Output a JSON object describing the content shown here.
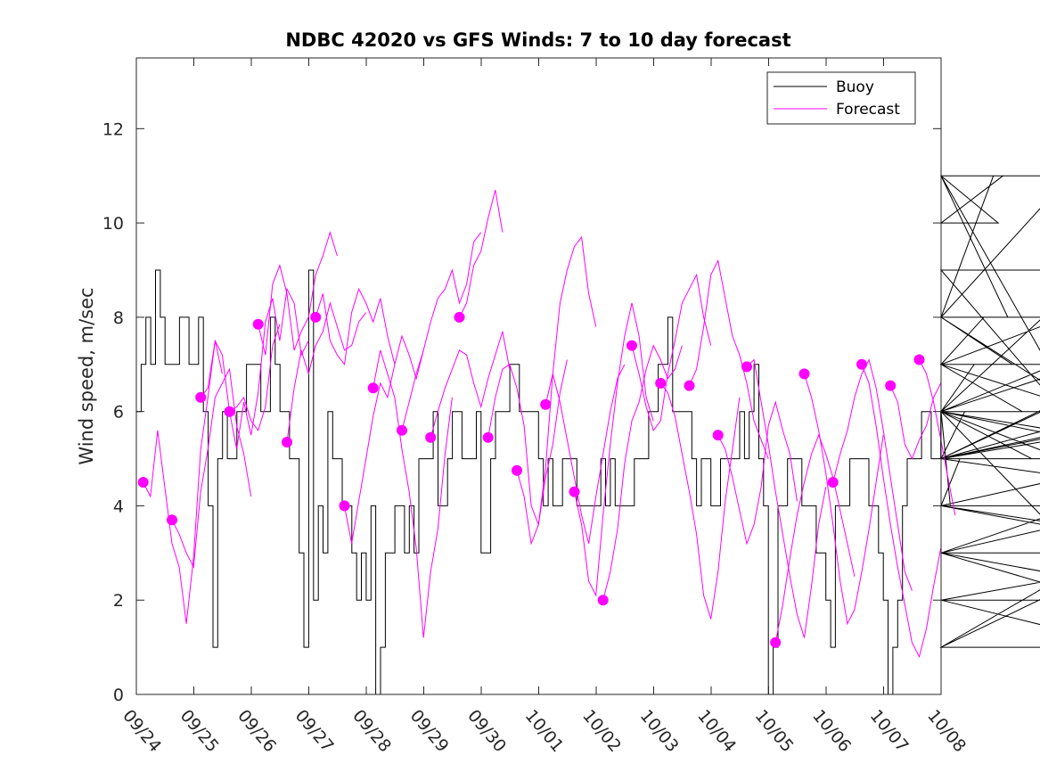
{
  "chart_data": {
    "type": "line",
    "title": "NDBC 42020 vs GFS Winds: 7 to 10 day forecast",
    "xlabel": "",
    "ylabel": "Wind speed, m/sec",
    "xlim": [
      0,
      14
    ],
    "ylim": [
      0,
      13.5
    ],
    "grid": false,
    "legend_position": "top-right",
    "x_ticks": [
      0,
      1,
      2,
      3,
      4,
      5,
      6,
      7,
      8,
      9,
      10,
      11,
      12,
      13,
      14
    ],
    "x_tick_labels": [
      "09/24",
      "09/25",
      "09/26",
      "09/27",
      "09/28",
      "09/29",
      "09/30",
      "10/01",
      "10/02",
      "10/03",
      "10/04",
      "10/05",
      "10/06",
      "10/07",
      "10/08"
    ],
    "y_ticks": [
      0,
      2,
      4,
      6,
      8,
      10,
      12
    ],
    "y_tick_labels": [
      "0",
      "2",
      "4",
      "6",
      "8",
      "10",
      "12"
    ],
    "colors": {
      "buoy": "#000000",
      "forecast": "#ff00ff"
    },
    "legend": [
      {
        "name": "Buoy",
        "color": "#000000"
      },
      {
        "name": "Forecast",
        "color": "#ff00ff"
      }
    ],
    "buoy": {
      "name": "Buoy",
      "step_days": 0.0833,
      "values": [
        6,
        7,
        8,
        7,
        9,
        8,
        7,
        7,
        7,
        8,
        8,
        7,
        7,
        8,
        6,
        4,
        1,
        5,
        6,
        5,
        5,
        6,
        6,
        7,
        7,
        7,
        6,
        6,
        8,
        7,
        6,
        6,
        5,
        5,
        3,
        1,
        9,
        2,
        4,
        3,
        6,
        5,
        5,
        4,
        4,
        3,
        2,
        3,
        2,
        4,
        0,
        1,
        3,
        3,
        4,
        4,
        3,
        4,
        3,
        5,
        5,
        5,
        6,
        4,
        4,
        5,
        6,
        6,
        5,
        5,
        5,
        6,
        3,
        3,
        5,
        6,
        6,
        6,
        7,
        7,
        6,
        6,
        6,
        6,
        5,
        4,
        5,
        4,
        4,
        5,
        5,
        5,
        4,
        4,
        4,
        4,
        4,
        5,
        4,
        5,
        4,
        4,
        4,
        4,
        5,
        5,
        5,
        6,
        6,
        7,
        7,
        8,
        6,
        6,
        6,
        6,
        5,
        4,
        5,
        5,
        4,
        4,
        5,
        5,
        5,
        5,
        6,
        5,
        6,
        7,
        5,
        4,
        0,
        1,
        4,
        4,
        5,
        5,
        5,
        4,
        4,
        4,
        3,
        3,
        2,
        1,
        4,
        4,
        4,
        5,
        5,
        5,
        5,
        4,
        4,
        3,
        2,
        0,
        1,
        2,
        4,
        5,
        5,
        5,
        6,
        6,
        5,
        5,
        6,
        6,
        4,
        4,
        5,
        6,
        6,
        7,
        7,
        8,
        8,
        11,
        10,
        11,
        8,
        7,
        7,
        6,
        6,
        5,
        5,
        6,
        6,
        6,
        7,
        7,
        8,
        11,
        6,
        6,
        7,
        6,
        9,
        9,
        5,
        5,
        6,
        6,
        2,
        2,
        1,
        3,
        3,
        4,
        5,
        5,
        6,
        6,
        5,
        5,
        6,
        4,
        4,
        3,
        2,
        3,
        3,
        5,
        5,
        6,
        5,
        8,
        4,
        4,
        4,
        3,
        3,
        1,
        5,
        4,
        4,
        4
      ]
    },
    "forecast_markers": {
      "x": [
        0.12,
        0.62,
        1.12,
        1.62,
        2.12,
        2.62,
        3.12,
        3.62,
        4.12,
        4.62,
        5.12,
        5.62,
        6.12,
        6.62,
        7.12,
        7.62,
        8.12,
        8.62,
        9.12,
        9.62,
        10.12,
        10.62,
        11.12,
        11.62,
        12.12,
        12.62,
        13.12,
        13.62
      ],
      "y": [
        4.5,
        3.7,
        6.3,
        6.0,
        7.85,
        5.35,
        8.0,
        4.0,
        6.5,
        5.6,
        5.45,
        8.0,
        5.45,
        4.75,
        6.15,
        4.3,
        2.0,
        7.4,
        6.6,
        6.55,
        5.5,
        6.95,
        1.1,
        6.8,
        4.5,
        7.0,
        6.55,
        7.1
      ]
    },
    "forecast_series": [
      {
        "name": "Forecast 1",
        "values": [
          4.5,
          4.2,
          5.6,
          4.4,
          3.2,
          2.7,
          1.5,
          2.9,
          5.2,
          6.3,
          7.5,
          6.8
        ]
      },
      {
        "name": "Forecast 2",
        "values": [
          3.7,
          3.4,
          3.0,
          2.7,
          4.3,
          5.2,
          6.3,
          6.6,
          6.9,
          5.7,
          5.1,
          4.2
        ]
      },
      {
        "name": "Forecast 3",
        "values": [
          6.3,
          6.5,
          7.5,
          7.2,
          6.0,
          6.1,
          6.3,
          5.8,
          5.6,
          6.1,
          7.4,
          7.85
        ]
      },
      {
        "name": "Forecast 4",
        "values": [
          6.0,
          5.2,
          6.2,
          5.5,
          6.4,
          7.9,
          8.4,
          7.5,
          8.6,
          8.3,
          7.2,
          7.5
        ]
      },
      {
        "name": "Forecast 5",
        "values": [
          7.85,
          7.2,
          8.7,
          9.1,
          8.5,
          7.3,
          7.7,
          8.0,
          8.9,
          9.3,
          9.8,
          9.3
        ]
      },
      {
        "name": "Forecast 6",
        "values": [
          5.35,
          6.5,
          7.3,
          6.8,
          7.4,
          7.7,
          8.3,
          7.8,
          7.3,
          7.4,
          7.9,
          8.1
        ]
      },
      {
        "name": "Forecast 7",
        "values": [
          8.0,
          8.5,
          7.5,
          7.2,
          7.0,
          8.1,
          8.6,
          8.3,
          7.9,
          8.4,
          7.6,
          7.0
        ]
      },
      {
        "name": "Forecast 8",
        "values": [
          4.0,
          3.2,
          4.1,
          5.0,
          5.9,
          6.6,
          6.3,
          7.0,
          7.6,
          7.2,
          6.7,
          7.3
        ]
      },
      {
        "name": "Forecast 9",
        "values": [
          6.5,
          7.3,
          6.8,
          6.3,
          5.2,
          4.3,
          3.1,
          1.2,
          2.6,
          3.5,
          5.1,
          6.3
        ]
      },
      {
        "name": "Forecast 10",
        "values": [
          5.6,
          6.2,
          6.8,
          7.3,
          7.9,
          8.4,
          8.6,
          9.0,
          8.3,
          8.7,
          9.6,
          9.8
        ]
      },
      {
        "name": "Forecast 11",
        "values": [
          5.45,
          6.0,
          6.5,
          6.9,
          7.3,
          7.2,
          6.6,
          6.1,
          6.7,
          7.2,
          7.7,
          6.9
        ]
      },
      {
        "name": "Forecast 12",
        "values": [
          8.0,
          8.3,
          9.1,
          9.4,
          10.1,
          10.7,
          9.8
        ]
      },
      {
        "name": "Forecast 13",
        "values": [
          5.45,
          6.3,
          6.9,
          7.0,
          6.5,
          5.7,
          4.0,
          3.6,
          4.6,
          5.3,
          6.4,
          7.1
        ]
      },
      {
        "name": "Forecast 14",
        "values": [
          4.75,
          4.2,
          3.2,
          3.6,
          4.8,
          6.8,
          8.3,
          9.0,
          9.5,
          9.7,
          8.5,
          7.8
        ]
      },
      {
        "name": "Forecast 15",
        "values": [
          6.15,
          6.8,
          6.2,
          5.4,
          4.6,
          3.8,
          3.2,
          4.2,
          5.1,
          6.0,
          6.7,
          7.0
        ]
      },
      {
        "name": "Forecast 16",
        "values": [
          4.3,
          3.6,
          2.4,
          2.1,
          3.8,
          5.3,
          6.6,
          7.6,
          8.3,
          7.6,
          6.3,
          5.8
        ]
      },
      {
        "name": "Forecast 17",
        "values": [
          2.0,
          2.6,
          3.5,
          4.9,
          5.8,
          6.2,
          6.9,
          7.4,
          7.1,
          6.7,
          6.9,
          7.4
        ]
      },
      {
        "name": "Forecast 18",
        "values": [
          7.4,
          6.8,
          6.1,
          5.6,
          5.8,
          6.8,
          7.5,
          8.3,
          8.6,
          8.9,
          8.0,
          7.4
        ]
      },
      {
        "name": "Forecast 19",
        "values": [
          6.6,
          6.4,
          5.9,
          5.1,
          4.3,
          3.4,
          2.1,
          1.6,
          2.6,
          4.1,
          5.2,
          6.3
        ]
      },
      {
        "name": "Forecast 20",
        "values": [
          6.55,
          6.9,
          7.8,
          8.9,
          9.2,
          8.4,
          7.6,
          7.2,
          6.6,
          5.8,
          5.4,
          5.0
        ]
      },
      {
        "name": "Forecast 21",
        "values": [
          5.5,
          5.2,
          4.6,
          3.9,
          3.2,
          3.6,
          4.4,
          5.7,
          6.2,
          5.6,
          5.1,
          4.1
        ]
      },
      {
        "name": "Forecast 22",
        "values": [
          6.95,
          7.1,
          6.2,
          5.3,
          4.3,
          3.4,
          2.5,
          1.7,
          1.2,
          2.3,
          3.6,
          4.4
        ]
      },
      {
        "name": "Forecast 23",
        "values": [
          1.1,
          1.9,
          2.9,
          3.8,
          4.5,
          5.1,
          5.5,
          5.1,
          4.6,
          3.9,
          3.2,
          2.5
        ]
      },
      {
        "name": "Forecast 24",
        "values": [
          6.8,
          6.3,
          5.6,
          4.7,
          3.6,
          2.4,
          1.5,
          1.8,
          2.6,
          3.5,
          4.5,
          5.5
        ]
      },
      {
        "name": "Forecast 25",
        "values": [
          4.5,
          5.1,
          5.6,
          6.3,
          6.8,
          7.1,
          6.5,
          5.6,
          4.6,
          3.6,
          2.6,
          2.2
        ]
      },
      {
        "name": "Forecast 26",
        "values": [
          7.0,
          6.6,
          5.7,
          4.6,
          3.6,
          2.7,
          1.9,
          1.1,
          0.8,
          1.4,
          2.3,
          3.1
        ]
      },
      {
        "name": "Forecast 27",
        "values": [
          6.55,
          6.2,
          5.3,
          5.0,
          5.4,
          5.7,
          6.3,
          6.6
        ]
      },
      {
        "name": "Forecast 28",
        "values": [
          7.1,
          6.8,
          6.2,
          5.4,
          4.6,
          3.8
        ]
      }
    ]
  }
}
